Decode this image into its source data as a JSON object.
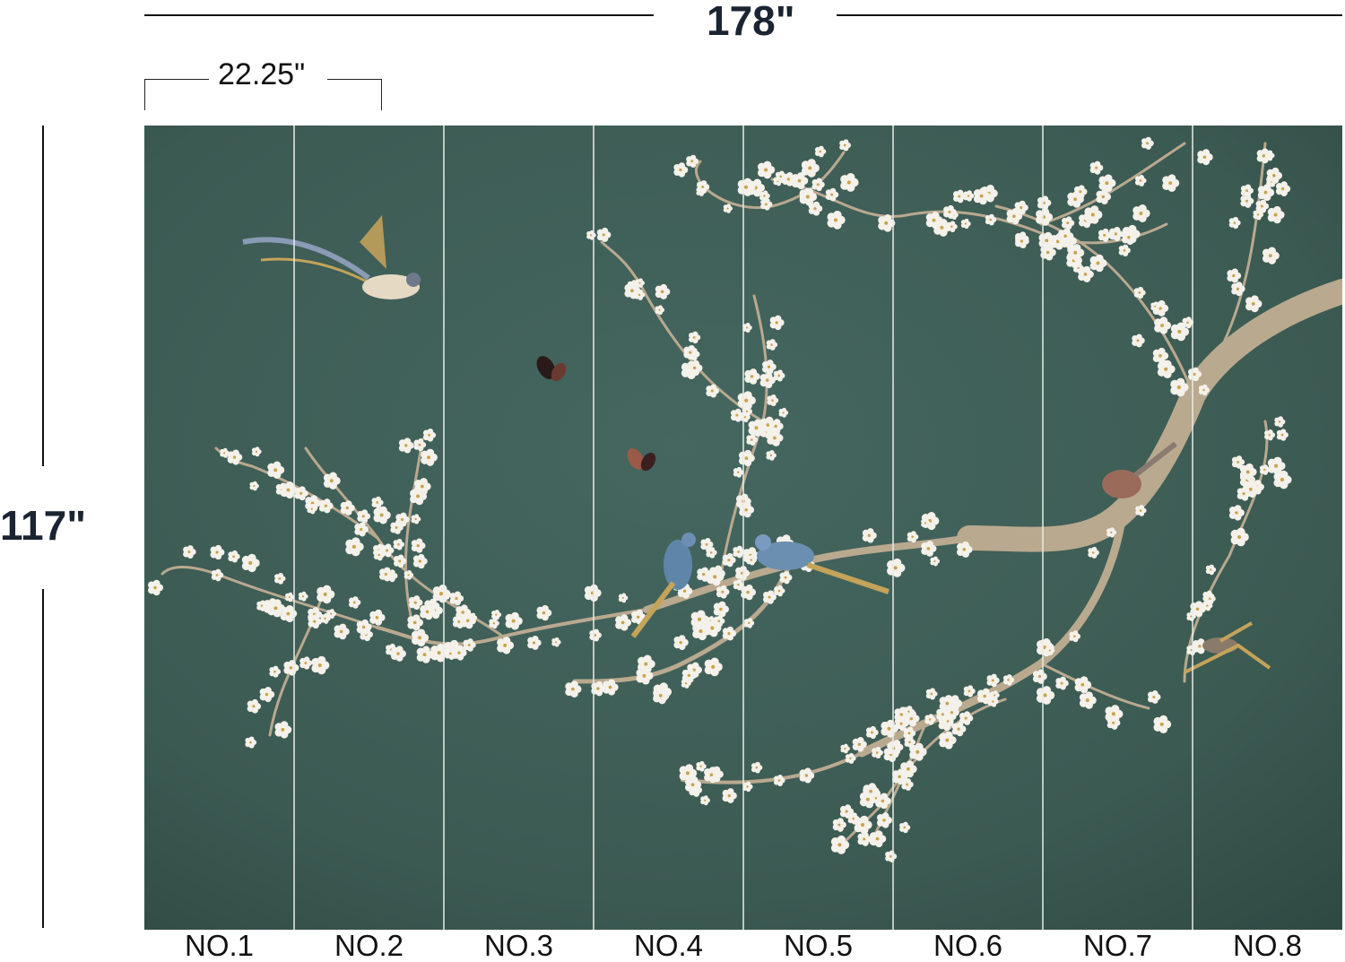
{
  "dimensions": {
    "total_width": "178\"",
    "panel_width": "22.25\"",
    "height": "117\""
  },
  "panels": [
    "NO.1",
    "NO.2",
    "NO.3",
    "NO.4",
    "NO.5",
    "NO.6",
    "NO.7",
    "NO.8"
  ],
  "colors": {
    "background_green": "#3f5e56",
    "blossom": "#f4f1ea",
    "branch": "#b9a98f",
    "divider": "#e8ece8",
    "text": "#111111"
  }
}
